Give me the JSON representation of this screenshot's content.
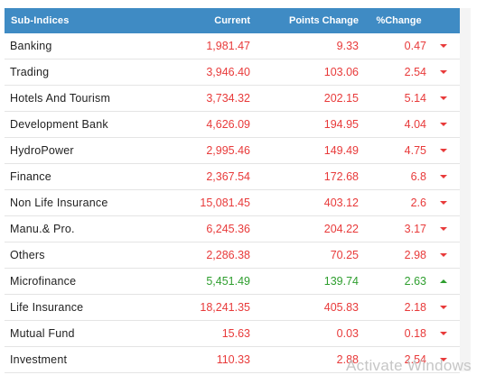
{
  "table": {
    "headers": {
      "name": "Sub-Indices",
      "current": "Current",
      "points_change": "Points Change",
      "pct_change": "%Change"
    },
    "rows": [
      {
        "name": "Banking",
        "current": "1,981.47",
        "points": "9.33",
        "pct": "0.47",
        "dir": "down"
      },
      {
        "name": "Trading",
        "current": "3,946.40",
        "points": "103.06",
        "pct": "2.54",
        "dir": "down"
      },
      {
        "name": "Hotels And Tourism",
        "current": "3,734.32",
        "points": "202.15",
        "pct": "5.14",
        "dir": "down"
      },
      {
        "name": "Development Bank",
        "current": "4,626.09",
        "points": "194.95",
        "pct": "4.04",
        "dir": "down"
      },
      {
        "name": "HydroPower",
        "current": "2,995.46",
        "points": "149.49",
        "pct": "4.75",
        "dir": "down"
      },
      {
        "name": "Finance",
        "current": "2,367.54",
        "points": "172.68",
        "pct": "6.8",
        "dir": "down"
      },
      {
        "name": "Non Life Insurance",
        "current": "15,081.45",
        "points": "403.12",
        "pct": "2.6",
        "dir": "down"
      },
      {
        "name": "Manu.& Pro.",
        "current": "6,245.36",
        "points": "204.22",
        "pct": "3.17",
        "dir": "down"
      },
      {
        "name": "Others",
        "current": "2,286.38",
        "points": "70.25",
        "pct": "2.98",
        "dir": "down"
      },
      {
        "name": "Microfinance",
        "current": "5,451.49",
        "points": "139.74",
        "pct": "2.63",
        "dir": "up"
      },
      {
        "name": "Life Insurance",
        "current": "18,241.35",
        "points": "405.83",
        "pct": "2.18",
        "dir": "down"
      },
      {
        "name": "Mutual Fund",
        "current": "15.63",
        "points": "0.03",
        "pct": "0.18",
        "dir": "down"
      },
      {
        "name": "Investment",
        "current": "110.33",
        "points": "2.88",
        "pct": "2.54",
        "dir": "down"
      }
    ]
  },
  "watermark": "Activate Windows",
  "colors": {
    "header_bg": "#3f8bc4",
    "down": "#e83a3a",
    "up": "#2e9e2e"
  },
  "icons": {
    "down": "triangle-down-icon",
    "up": "triangle-up-icon"
  }
}
